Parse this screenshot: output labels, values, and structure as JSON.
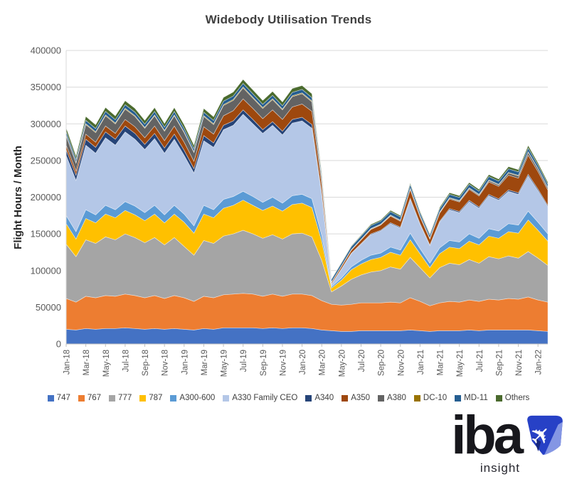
{
  "title": "Widebody Utilisation Trends",
  "ylabel": "Flight Hours / Month",
  "branding": {
    "logo_text": "iba",
    "tagline": "insight",
    "logo_dark_blue": "#2741C6",
    "logo_light_blue": "#8496E4"
  },
  "chart_data": {
    "type": "area",
    "stacked": true,
    "title": "Widebody Utilisation Trends",
    "xlabel": "",
    "ylabel": "Flight Hours / Month",
    "ylim": [
      0,
      400000
    ],
    "y_ticks": [
      0,
      50000,
      100000,
      150000,
      200000,
      250000,
      300000,
      350000,
      400000
    ],
    "grid": "horizontal",
    "legend_position": "bottom",
    "x_tick_step": 2,
    "x": [
      "Jan-18",
      "Feb-18",
      "Mar-18",
      "Apr-18",
      "May-18",
      "Jun-18",
      "Jul-18",
      "Aug-18",
      "Sep-18",
      "Oct-18",
      "Nov-18",
      "Dec-18",
      "Jan-19",
      "Feb-19",
      "Mar-19",
      "Apr-19",
      "May-19",
      "Jun-19",
      "Jul-19",
      "Aug-19",
      "Sep-19",
      "Oct-19",
      "Nov-19",
      "Dec-19",
      "Jan-20",
      "Feb-20",
      "Mar-20",
      "Apr-20",
      "May-20",
      "Jun-20",
      "Jul-20",
      "Aug-20",
      "Sep-20",
      "Oct-20",
      "Nov-20",
      "Dec-20",
      "Jan-21",
      "Feb-21",
      "Mar-21",
      "Apr-21",
      "May-21",
      "Jun-21",
      "Jul-21",
      "Aug-21",
      "Sep-21",
      "Oct-21",
      "Nov-21",
      "Dec-21",
      "Jan-22",
      "Feb-22"
    ],
    "x_ticks_shown": [
      "Jan-18",
      "Mar-18",
      "May-18",
      "Jul-18",
      "Sep-18",
      "Nov-18",
      "Jan-19",
      "Mar-19",
      "May-19",
      "Jul-19",
      "Sep-19",
      "Nov-19",
      "Jan-20",
      "Mar-20",
      "May-20",
      "Jul-20",
      "Sep-20",
      "Nov-20",
      "Jan-21",
      "Mar-21",
      "May-21",
      "Jul-21",
      "Sep-21",
      "Nov-21",
      "Jan-22"
    ],
    "series": [
      {
        "name": "747",
        "color": "#4472C4",
        "values": [
          20000,
          19000,
          21000,
          20000,
          21000,
          21000,
          22000,
          21000,
          20000,
          21000,
          20000,
          21000,
          20000,
          19000,
          21000,
          20000,
          22000,
          22000,
          22000,
          22000,
          21000,
          22000,
          21000,
          22000,
          22000,
          21000,
          19000,
          18000,
          17000,
          17000,
          18000,
          18000,
          18000,
          18000,
          18000,
          19000,
          18000,
          17000,
          18000,
          18000,
          18000,
          19000,
          18000,
          19000,
          19000,
          19000,
          19000,
          19000,
          18000,
          17000
        ]
      },
      {
        "name": "767",
        "color": "#ED7D31",
        "values": [
          42000,
          38000,
          44000,
          43000,
          45000,
          44000,
          46000,
          45000,
          43000,
          45000,
          42000,
          45000,
          43000,
          39000,
          44000,
          43000,
          45000,
          46000,
          47000,
          46000,
          44000,
          46000,
          44000,
          46000,
          46000,
          45000,
          40000,
          36000,
          36000,
          37000,
          38000,
          38000,
          38000,
          39000,
          38000,
          44000,
          40000,
          35000,
          38000,
          40000,
          39000,
          41000,
          40000,
          42000,
          41000,
          43000,
          42000,
          45000,
          42000,
          40000
        ]
      },
      {
        "name": "777",
        "color": "#A5A5A5",
        "values": [
          74000,
          62000,
          77000,
          74000,
          80000,
          77000,
          82000,
          79000,
          75000,
          79000,
          73000,
          79000,
          70000,
          63000,
          76000,
          74000,
          80000,
          82000,
          86000,
          82000,
          79000,
          81000,
          78000,
          82000,
          83000,
          80000,
          55000,
          17000,
          26000,
          34000,
          38000,
          42000,
          44000,
          48000,
          46000,
          55000,
          46000,
          38000,
          48000,
          52000,
          51000,
          55000,
          52000,
          58000,
          56000,
          58000,
          56000,
          62000,
          57000,
          50000
        ]
      },
      {
        "name": "787",
        "color": "#FFC000",
        "values": [
          28000,
          24000,
          29000,
          28000,
          31000,
          30000,
          32000,
          31000,
          30000,
          32000,
          30000,
          32000,
          33000,
          30000,
          36000,
          35000,
          38000,
          39000,
          41000,
          39000,
          38000,
          39000,
          38000,
          40000,
          41000,
          40000,
          26000,
          5000,
          8000,
          13000,
          15000,
          17000,
          18000,
          20000,
          19000,
          24000,
          19000,
          14000,
          19000,
          22000,
          22000,
          25000,
          25000,
          28000,
          28000,
          33000,
          34000,
          43000,
          38000,
          33000
        ]
      },
      {
        "name": "A300-600",
        "color": "#5B9BD5",
        "values": [
          11000,
          10000,
          12000,
          11000,
          12000,
          11000,
          12000,
          12000,
          11000,
          12000,
          11000,
          12000,
          11000,
          10000,
          12000,
          11000,
          12000,
          12000,
          12000,
          12000,
          11000,
          12000,
          11000,
          12000,
          12000,
          12000,
          8000,
          2000,
          3000,
          4000,
          5000,
          6000,
          6000,
          7000,
          7000,
          9000,
          7000,
          6000,
          8000,
          9000,
          9000,
          10000,
          9000,
          10000,
          10000,
          11000,
          11000,
          12000,
          11000,
          10000
        ]
      },
      {
        "name": "A330 Family CEO",
        "color": "#B4C7E7",
        "values": [
          82000,
          70000,
          88000,
          84000,
          92000,
          88000,
          95000,
          91000,
          86000,
          91000,
          84000,
          90000,
          80000,
          72000,
          88000,
          85000,
          95000,
          97000,
          105000,
          99000,
          94000,
          98000,
          93000,
          99000,
          100000,
          96000,
          55000,
          3500,
          12000,
          18000,
          22000,
          28000,
          30000,
          32000,
          30000,
          46000,
          33000,
          24000,
          35000,
          42000,
          40000,
          44000,
          41000,
          45000,
          42000,
          44000,
          42000,
          48000,
          43000,
          37000
        ]
      },
      {
        "name": "A340",
        "color": "#264478",
        "values": [
          8000,
          7000,
          8000,
          8000,
          8000,
          8000,
          8000,
          8000,
          7000,
          7000,
          7000,
          7000,
          7000,
          6000,
          7000,
          6000,
          6000,
          6000,
          6000,
          6000,
          5000,
          5000,
          5000,
          5000,
          5000,
          5000,
          3000,
          400,
          500,
          600,
          800,
          1000,
          1000,
          1200,
          1200,
          1500,
          1200,
          1000,
          1300,
          1500,
          1500,
          1700,
          1600,
          1800,
          1800,
          2000,
          2000,
          2200,
          2000,
          1800
        ]
      },
      {
        "name": "A350",
        "color": "#9E480E",
        "values": [
          6000,
          5500,
          7000,
          7000,
          8000,
          8000,
          9000,
          9000,
          9000,
          10000,
          10000,
          11000,
          11000,
          10000,
          12000,
          12000,
          13000,
          14000,
          15000,
          15000,
          15000,
          16000,
          16000,
          17000,
          18000,
          18000,
          12000,
          2000,
          3000,
          4000,
          5000,
          6000,
          7000,
          9000,
          8000,
          12000,
          9000,
          8000,
          11000,
          13000,
          13000,
          15000,
          15000,
          17000,
          17000,
          20000,
          20000,
          26000,
          24000,
          21000
        ]
      },
      {
        "name": "A380",
        "color": "#636363",
        "values": [
          13000,
          11000,
          13000,
          13000,
          14000,
          13000,
          14000,
          14000,
          13000,
          14000,
          13000,
          14000,
          13000,
          12000,
          14000,
          13000,
          14000,
          14000,
          15000,
          14000,
          14000,
          14000,
          13000,
          14000,
          14000,
          13000,
          7000,
          300,
          400,
          500,
          600,
          800,
          800,
          1000,
          1000,
          1200,
          1000,
          800,
          1000,
          1200,
          1200,
          1500,
          1500,
          2000,
          2000,
          3000,
          3000,
          4000,
          3500,
          3000
        ]
      },
      {
        "name": "DC-10",
        "color": "#997300",
        "values": [
          1200,
          1100,
          1200,
          1200,
          1300,
          1200,
          1300,
          1200,
          1200,
          1200,
          1100,
          1200,
          1200,
          1100,
          1200,
          1200,
          1200,
          1300,
          1300,
          1200,
          1200,
          1200,
          1200,
          1200,
          1200,
          1200,
          800,
          300,
          400,
          400,
          500,
          500,
          500,
          600,
          600,
          700,
          600,
          500,
          600,
          700,
          700,
          700,
          700,
          700,
          700,
          800,
          800,
          800,
          700,
          600
        ]
      },
      {
        "name": "MD-11",
        "color": "#255E91",
        "values": [
          4500,
          4200,
          4600,
          4500,
          4700,
          4500,
          4800,
          4700,
          4500,
          4700,
          4400,
          4700,
          4500,
          4200,
          4600,
          4400,
          4600,
          4700,
          4800,
          4700,
          4500,
          4700,
          4500,
          4700,
          4700,
          4600,
          4200,
          3500,
          3800,
          4000,
          4200,
          4200,
          4200,
          4500,
          4500,
          4800,
          4200,
          4000,
          4300,
          4500,
          4400,
          4600,
          4500,
          4700,
          4600,
          4800,
          4800,
          5000,
          4600,
          4200
        ]
      },
      {
        "name": "Others",
        "color": "#4A6A2D",
        "values": [
          5000,
          4500,
          5200,
          5000,
          5300,
          5100,
          5400,
          5200,
          5000,
          5200,
          4900,
          5200,
          5000,
          4600,
          5200,
          5000,
          5200,
          5300,
          5500,
          5300,
          5100,
          5300,
          5100,
          5300,
          5300,
          5200,
          3000,
          500,
          800,
          1000,
          1200,
          1500,
          1500,
          1800,
          1800,
          2000,
          1800,
          1500,
          2000,
          2200,
          2200,
          2500,
          2400,
          2600,
          2600,
          3000,
          3000,
          3500,
          3000,
          2800
        ]
      }
    ]
  }
}
